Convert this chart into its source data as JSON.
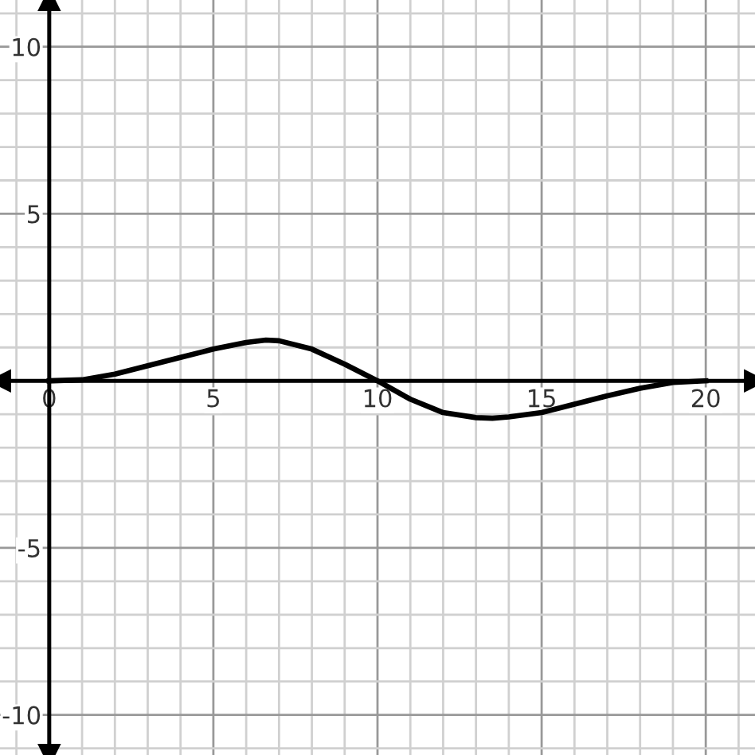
{
  "chart_data": {
    "type": "line",
    "x": [
      0,
      1,
      2,
      3,
      4,
      5,
      6,
      6.6,
      7,
      8,
      9,
      10,
      11,
      12,
      13,
      13.5,
      14,
      15,
      16,
      17,
      18,
      19,
      20
    ],
    "series": [
      {
        "color": "#000000",
        "values": [
          0,
          0.03,
          0.2,
          0.45,
          0.7,
          0.95,
          1.15,
          1.22,
          1.2,
          0.95,
          0.5,
          0,
          -0.55,
          -0.95,
          -1.1,
          -1.12,
          -1.08,
          -0.95,
          -0.7,
          -0.45,
          -0.22,
          -0.05,
          0
        ]
      }
    ],
    "xlim": [
      -1.5,
      21.5
    ],
    "ylim": [
      -11.2,
      11.4
    ],
    "xticks": [
      {
        "value": -1,
        "label": null
      },
      0,
      {
        "value": 1,
        "label": null
      },
      {
        "value": 2,
        "label": null
      },
      {
        "value": 3,
        "label": null
      },
      {
        "value": 4,
        "label": null
      },
      5,
      {
        "value": 6,
        "label": null
      },
      {
        "value": 7,
        "label": null
      },
      {
        "value": 8,
        "label": null
      },
      {
        "value": 9,
        "label": null
      },
      10,
      {
        "value": 11,
        "label": null
      },
      {
        "value": 12,
        "label": null
      },
      {
        "value": 13,
        "label": null
      },
      {
        "value": 14,
        "label": null
      },
      15,
      {
        "value": 16,
        "label": null
      },
      {
        "value": 17,
        "label": null
      },
      {
        "value": 18,
        "label": null
      },
      {
        "value": 19,
        "label": null
      },
      20,
      {
        "value": 21,
        "label": null
      }
    ],
    "yticks": [
      {
        "value": -11,
        "label": null
      },
      -10,
      {
        "value": -9,
        "label": null
      },
      {
        "value": -8,
        "label": null
      },
      {
        "value": -7,
        "label": null
      },
      {
        "value": -6,
        "label": null
      },
      -5,
      {
        "value": -4,
        "label": null
      },
      {
        "value": -3,
        "label": null
      },
      {
        "value": -2,
        "label": null
      },
      {
        "value": -1,
        "label": null
      },
      {
        "value": 0,
        "label": null
      },
      {
        "value": 1,
        "label": null
      },
      {
        "value": 2,
        "label": null
      },
      {
        "value": 3,
        "label": null
      },
      {
        "value": 4,
        "label": null
      },
      5,
      {
        "value": 6,
        "label": null
      },
      {
        "value": 7,
        "label": null
      },
      {
        "value": 8,
        "label": null
      },
      {
        "value": 9,
        "label": null
      },
      10,
      {
        "value": 11,
        "label": null
      }
    ],
    "grid": true,
    "marker": "none",
    "line_style": "solid"
  }
}
